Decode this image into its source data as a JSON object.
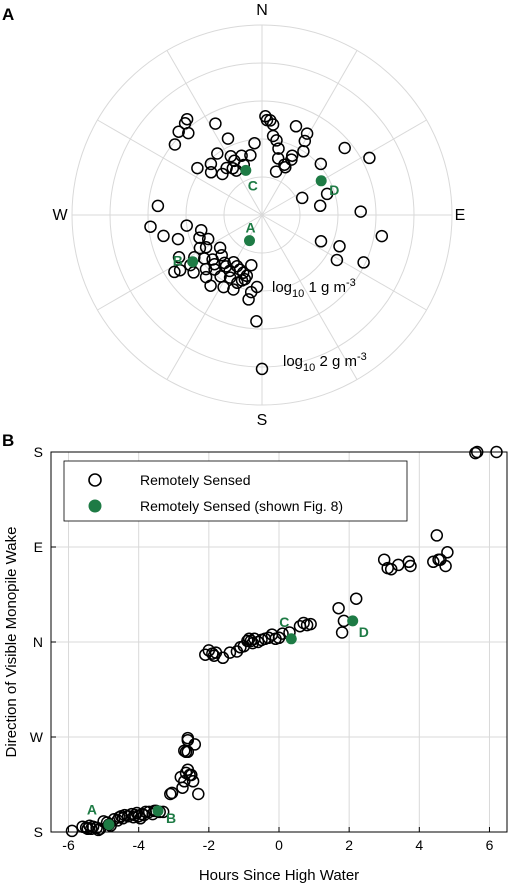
{
  "colors": {
    "highlight": "#1e7b45",
    "grid": "#d9d9d9",
    "marker": "#000000"
  },
  "chart_data": [
    {
      "type": "scatter",
      "subtype": "polar",
      "panel_label": "A",
      "direction_labels": [
        "N",
        "E",
        "S",
        "W"
      ],
      "radial_labels": {
        "inner": {
          "pre": "log",
          "sub": "10",
          "mid": " 1 g m",
          "sup": "-3"
        },
        "outer": {
          "pre": "log",
          "sub": "10",
          "mid": " 2 g m",
          "sup": "-3"
        }
      },
      "series": [
        {
          "legend_ref": 0,
          "marker": "open-circle",
          "points": [
            [
              -54,
              0.42
            ],
            [
              -50,
              0.35
            ],
            [
              -45,
              0.38
            ],
            [
              -44,
              0.3
            ],
            [
              -36,
              0.4
            ],
            [
              -37,
              0.31
            ],
            [
              -32,
              0.29
            ],
            [
              -30,
              0.27
            ],
            [
              -28,
              0.35
            ],
            [
              -27,
              0.32
            ],
            [
              -20,
              0.28
            ],
            [
              -19,
              0.33
            ],
            [
              -11,
              0.32
            ],
            [
              -6,
              0.38
            ],
            [
              2,
              0.52
            ],
            [
              3,
              0.5
            ],
            [
              5,
              0.5
            ],
            [
              7,
              0.48
            ],
            [
              8,
              0.42
            ],
            [
              11,
              0.4
            ],
            [
              14,
              0.36
            ],
            [
              16,
              0.31
            ],
            [
              18,
              0.24
            ],
            [
              21,
              0.5
            ],
            [
              24,
              0.29
            ],
            [
              26,
              0.28
            ],
            [
              27,
              0.35
            ],
            [
              28,
              0.33
            ],
            [
              29,
              0.49
            ],
            [
              30,
              0.45
            ],
            [
              33,
              0.4
            ],
            [
              49,
              0.41
            ],
            [
              51,
              0.56
            ],
            [
              62,
              0.64
            ],
            [
              67,
              0.23
            ],
            [
              72,
              0.36
            ],
            [
              81,
              0.31
            ],
            [
              88,
              0.52
            ],
            [
              100,
              0.64
            ],
            [
              112,
              0.44
            ],
            [
              114,
              0.34
            ],
            [
              115,
              0.59
            ],
            [
              121,
              0.46
            ],
            [
              180,
              0.81
            ],
            [
              183,
              0.56
            ],
            [
              184,
              0.38
            ],
            [
              188,
              0.41
            ],
            [
              189,
              0.45
            ],
            [
              192,
              0.27
            ],
            [
              194,
              0.33
            ],
            [
              195,
              0.35
            ],
            [
              197,
              0.36
            ],
            [
              198,
              0.32
            ],
            [
              200,
              0.38
            ],
            [
              201,
              0.42
            ],
            [
              202,
              0.31
            ],
            [
              206,
              0.3
            ],
            [
              207,
              0.37
            ],
            [
              208,
              0.43
            ],
            [
              210,
              0.34
            ],
            [
              211,
              0.29
            ],
            [
              214,
              0.39
            ],
            [
              215,
              0.33
            ],
            [
              216,
              0.46
            ],
            [
              218,
              0.32
            ],
            [
              221,
              0.38
            ],
            [
              222,
              0.44
            ],
            [
              224,
              0.36
            ],
            [
              225,
              0.3
            ],
            [
              226,
              0.41
            ],
            [
              228,
              0.35
            ],
            [
              230,
              0.47
            ],
            [
              232,
              0.28
            ],
            [
              233,
              0.38
            ],
            [
              235,
              0.46
            ],
            [
              236,
              0.52
            ],
            [
              237,
              0.55
            ],
            [
              238,
              0.42
            ],
            [
              240,
              0.34
            ],
            [
              242,
              0.37
            ],
            [
              243,
              0.49
            ],
            [
              246,
              0.31
            ],
            [
              250,
              0.35
            ],
            [
              254,
              0.46
            ],
            [
              256,
              0.33
            ],
            [
              258,
              0.53
            ],
            [
              262,
              0.4
            ],
            [
              264,
              0.59
            ],
            [
              275,
              0.55
            ],
            [
              309,
              0.59
            ],
            [
              315,
              0.62
            ],
            [
              318,
              0.58
            ],
            [
              320,
              0.63
            ],
            [
              322,
              0.64
            ],
            [
              333,
              0.54
            ],
            [
              336,
              0.44
            ]
          ]
        },
        {
          "legend_ref": 1,
          "marker": "filled-circle",
          "points": [
            [
              -20,
              0.25,
              "C"
            ],
            [
              60,
              0.36,
              "D"
            ],
            [
              206,
              0.15,
              "A"
            ],
            [
              236,
              0.44,
              "B"
            ]
          ]
        }
      ]
    },
    {
      "type": "scatter",
      "panel_label": "B",
      "xlabel": "Hours Since High Water",
      "ylabel": "Direction of Visible Monopile Wake",
      "xlim": [
        -6.5,
        6.5
      ],
      "ylim": [
        0,
        360
      ],
      "x_ticks": [
        -6,
        -4,
        -2,
        0,
        2,
        4,
        6
      ],
      "x_tick_labels": [
        "-6",
        "-4",
        "-2",
        "0",
        "2",
        "4",
        "6"
      ],
      "y_ticks": [
        0,
        90,
        180,
        270,
        360
      ],
      "y_tick_labels": [
        "S",
        "W",
        "N",
        "E",
        "S"
      ],
      "grid": true,
      "legend_position": "top-left",
      "legend": [
        "Remotely Sensed",
        "Remotely Sensed (shown Fig. 8)"
      ],
      "series": [
        {
          "name": "Remotely Sensed",
          "marker": "open-circle",
          "points": [
            [
              -5.9,
              1
            ],
            [
              -5.6,
              5
            ],
            [
              -5.5,
              4
            ],
            [
              -5.45,
              3
            ],
            [
              -5.4,
              6
            ],
            [
              -5.35,
              3
            ],
            [
              -5.3,
              5
            ],
            [
              -5.2,
              4
            ],
            [
              -5.15,
              2
            ],
            [
              -5.1,
              3
            ],
            [
              -5.0,
              10
            ],
            [
              -4.9,
              9
            ],
            [
              -4.85,
              7
            ],
            [
              -4.8,
              6
            ],
            [
              -4.7,
              12
            ],
            [
              -4.6,
              11
            ],
            [
              -4.55,
              14
            ],
            [
              -4.5,
              15
            ],
            [
              -4.45,
              13
            ],
            [
              -4.4,
              16
            ],
            [
              -4.3,
              15
            ],
            [
              -4.2,
              17
            ],
            [
              -4.15,
              14
            ],
            [
              -4.1,
              16
            ],
            [
              -4.05,
              18
            ],
            [
              -4.0,
              15
            ],
            [
              -3.95,
              13
            ],
            [
              -3.9,
              17
            ],
            [
              -3.85,
              16
            ],
            [
              -3.8,
              19
            ],
            [
              -3.7,
              19
            ],
            [
              -3.6,
              17
            ],
            [
              -3.55,
              20
            ],
            [
              -3.5,
              20
            ],
            [
              -3.4,
              19
            ],
            [
              -3.3,
              19
            ],
            [
              -3.1,
              36
            ],
            [
              -3.05,
              37
            ],
            [
              -2.8,
              52
            ],
            [
              -2.75,
              42
            ],
            [
              -2.7,
              48
            ],
            [
              -2.65,
              56
            ],
            [
              -2.6,
              59
            ],
            [
              -2.55,
              54
            ],
            [
              -2.5,
              54
            ],
            [
              -2.45,
              48
            ],
            [
              -2.3,
              36
            ],
            [
              -2.7,
              77
            ],
            [
              -2.65,
              76
            ],
            [
              -2.6,
              76
            ],
            [
              -2.6,
              89
            ],
            [
              -2.6,
              87
            ],
            [
              -2.4,
              83
            ],
            [
              -2.1,
              168
            ],
            [
              -2.0,
              172
            ],
            [
              -1.9,
              169
            ],
            [
              -1.85,
              167
            ],
            [
              -1.8,
              170
            ],
            [
              -1.6,
              165
            ],
            [
              -1.4,
              170
            ],
            [
              -1.2,
              171
            ],
            [
              -1.1,
              175
            ],
            [
              -1.0,
              176
            ],
            [
              -0.9,
              181
            ],
            [
              -0.85,
              183
            ],
            [
              -0.8,
              181
            ],
            [
              -0.75,
              179
            ],
            [
              -0.7,
              183
            ],
            [
              -0.6,
              180
            ],
            [
              -0.5,
              182
            ],
            [
              -0.4,
              183
            ],
            [
              -0.3,
              184
            ],
            [
              -0.2,
              187
            ],
            [
              -0.1,
              183
            ],
            [
              0.0,
              184
            ],
            [
              0.1,
              188
            ],
            [
              0.3,
              189
            ],
            [
              0.6,
              195
            ],
            [
              0.7,
              198
            ],
            [
              0.8,
              196
            ],
            [
              0.9,
              197
            ],
            [
              1.7,
              212
            ],
            [
              1.8,
              189
            ],
            [
              1.85,
              200
            ],
            [
              2.2,
              221
            ],
            [
              3.0,
              258
            ],
            [
              3.1,
              250
            ],
            [
              3.2,
              249
            ],
            [
              3.4,
              253
            ],
            [
              3.7,
              256
            ],
            [
              3.75,
              252
            ],
            [
              4.4,
              256
            ],
            [
              4.5,
              281
            ],
            [
              4.55,
              258
            ],
            [
              4.6,
              258
            ],
            [
              4.75,
              252
            ],
            [
              4.8,
              265
            ],
            [
              5.6,
              359
            ],
            [
              5.65,
              360
            ],
            [
              6.2,
              360
            ]
          ]
        },
        {
          "name": "Remotely Sensed (shown Fig. 8)",
          "marker": "filled-circle",
          "points": [
            [
              -4.85,
              7,
              "A"
            ],
            [
              -3.45,
              20,
              "B"
            ],
            [
              0.35,
              183,
              "C"
            ],
            [
              2.1,
              200,
              "D"
            ]
          ]
        }
      ]
    }
  ]
}
